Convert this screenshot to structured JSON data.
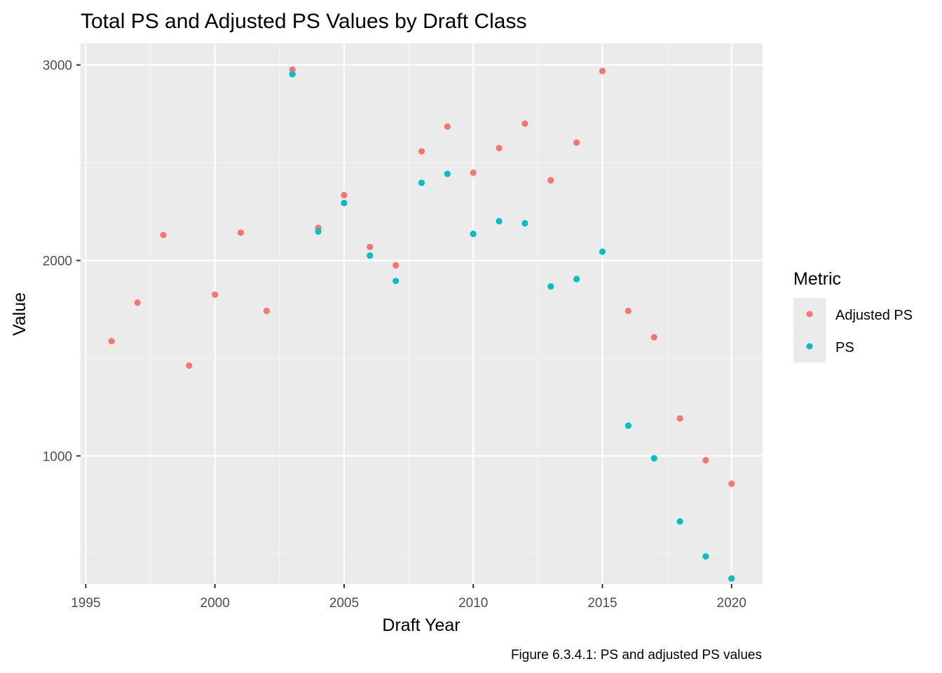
{
  "chart_data": {
    "type": "scatter",
    "title": "Total PS and Adjusted PS Values by Draft Class",
    "xlabel": "Draft Year",
    "ylabel": "Value",
    "caption": "Figure 6.3.4.1: PS and adjusted PS values",
    "xlim": [
      1994.8,
      2021.2
    ],
    "ylim": [
      345,
      3110
    ],
    "x_ticks": [
      1995,
      2000,
      2005,
      2010,
      2015,
      2020
    ],
    "x_tick_labels": [
      "1995",
      "2000",
      "2005",
      "2010",
      "2015",
      "2020"
    ],
    "y_ticks": [
      1000,
      2000,
      3000
    ],
    "y_tick_labels": [
      "1000",
      "2000",
      "3000"
    ],
    "grid": true,
    "legend": {
      "title": "Metric",
      "position": "right"
    },
    "series": [
      {
        "name": "Adjusted PS",
        "color": "#F8766D",
        "points": [
          {
            "x": 1996,
            "y": 1587
          },
          {
            "x": 1997,
            "y": 1784
          },
          {
            "x": 1998,
            "y": 2130
          },
          {
            "x": 1999,
            "y": 1462
          },
          {
            "x": 2000,
            "y": 1825
          },
          {
            "x": 2001,
            "y": 2142
          },
          {
            "x": 2002,
            "y": 1742
          },
          {
            "x": 2003,
            "y": 2976
          },
          {
            "x": 2004,
            "y": 2167
          },
          {
            "x": 2005,
            "y": 2334
          },
          {
            "x": 2006,
            "y": 2069
          },
          {
            "x": 2007,
            "y": 1975
          },
          {
            "x": 2008,
            "y": 2558
          },
          {
            "x": 2009,
            "y": 2685
          },
          {
            "x": 2010,
            "y": 2449
          },
          {
            "x": 2011,
            "y": 2575
          },
          {
            "x": 2012,
            "y": 2700
          },
          {
            "x": 2013,
            "y": 2410
          },
          {
            "x": 2014,
            "y": 2603
          },
          {
            "x": 2015,
            "y": 2969
          },
          {
            "x": 2016,
            "y": 1742
          },
          {
            "x": 2017,
            "y": 1607
          },
          {
            "x": 2018,
            "y": 1192
          },
          {
            "x": 2019,
            "y": 978
          },
          {
            "x": 2020,
            "y": 858
          }
        ]
      },
      {
        "name": "PS",
        "color": "#00BFC4",
        "points": [
          {
            "x": 2003,
            "y": 2953
          },
          {
            "x": 2004,
            "y": 2148
          },
          {
            "x": 2005,
            "y": 2294
          },
          {
            "x": 2006,
            "y": 2025
          },
          {
            "x": 2007,
            "y": 1895
          },
          {
            "x": 2008,
            "y": 2397
          },
          {
            "x": 2009,
            "y": 2443
          },
          {
            "x": 2010,
            "y": 2136
          },
          {
            "x": 2011,
            "y": 2201
          },
          {
            "x": 2012,
            "y": 2190
          },
          {
            "x": 2013,
            "y": 1867
          },
          {
            "x": 2014,
            "y": 1905
          },
          {
            "x": 2015,
            "y": 2045
          },
          {
            "x": 2016,
            "y": 1155
          },
          {
            "x": 2017,
            "y": 988
          },
          {
            "x": 2018,
            "y": 665
          },
          {
            "x": 2019,
            "y": 486
          },
          {
            "x": 2020,
            "y": 373
          }
        ]
      }
    ],
    "colors": {
      "panel_background": "#EBEBEB",
      "grid_major": "#FFFFFF",
      "grid_minor": "#F5F5F5",
      "legend_key_background": "#EBEBEB"
    }
  }
}
